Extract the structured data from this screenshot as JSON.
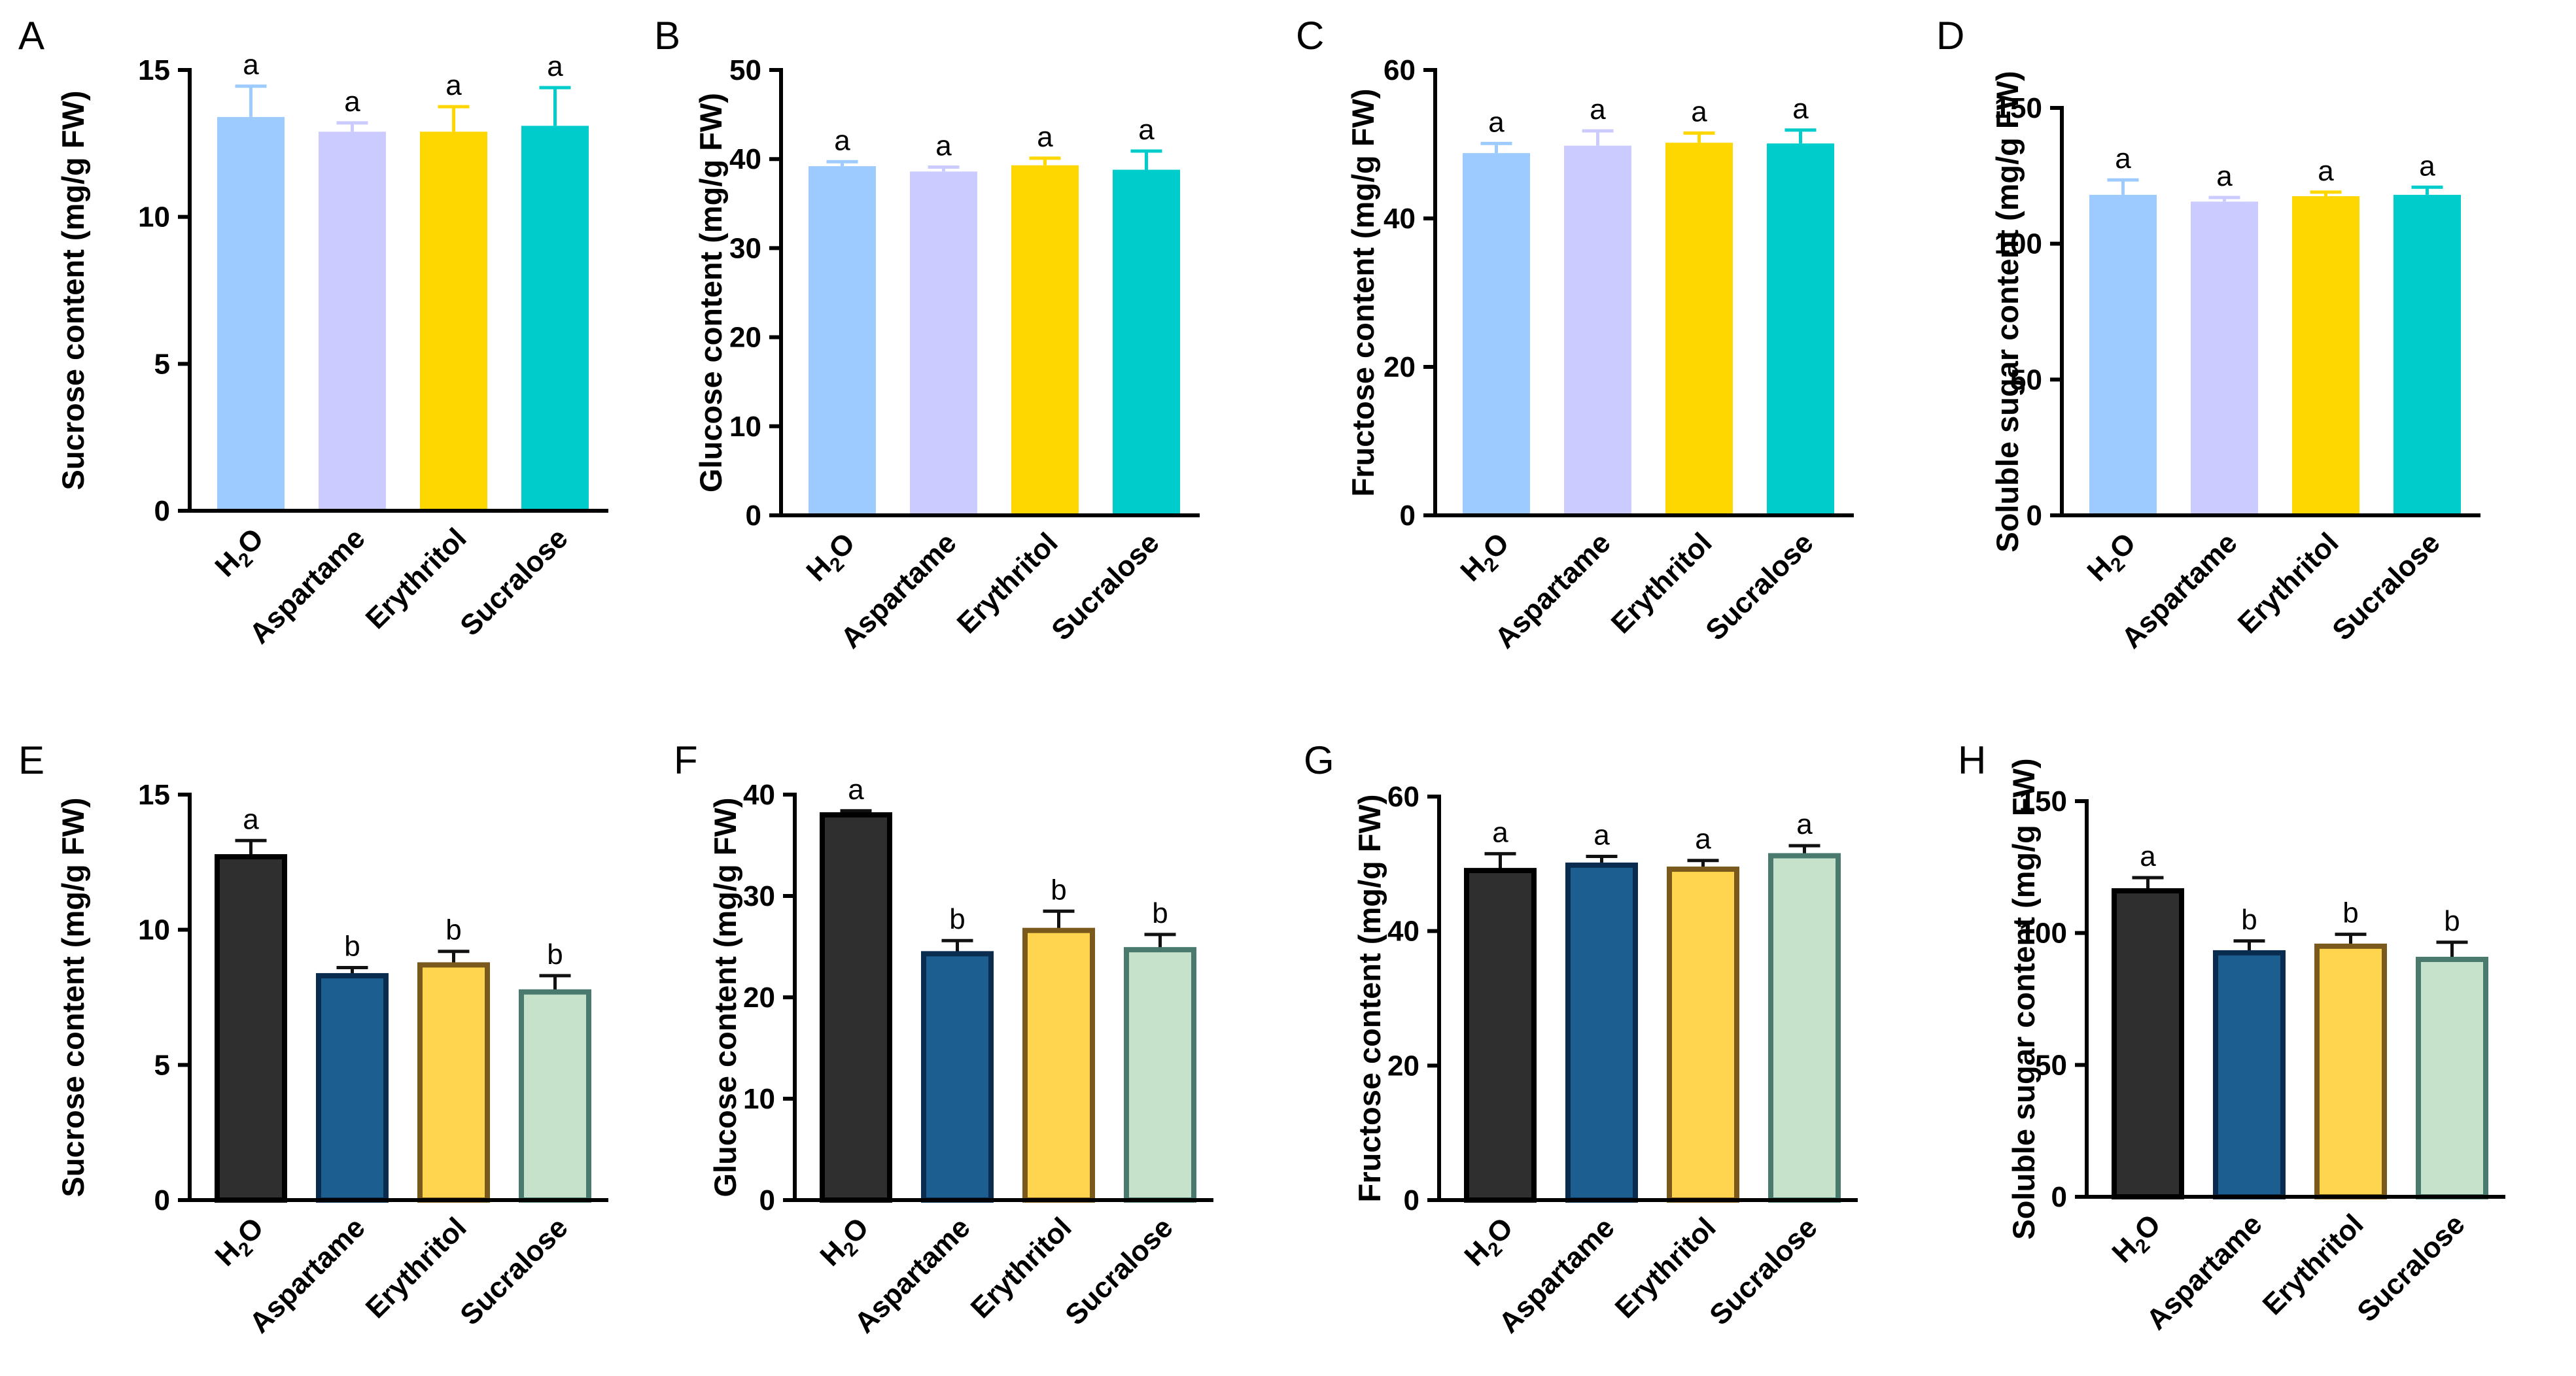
{
  "figure": {
    "colors": {
      "top": [
        "#9ECBFF",
        "#CCCBFF",
        "#FFD700",
        "#00CCCC"
      ],
      "bottom_fill": [
        "#2F2F2F",
        "#1D5E90",
        "#FFD54F",
        "#C6E2CB"
      ],
      "bottom_stroke": [
        "#000000",
        "#0A2C4E",
        "#7A5A1C",
        "#4A7A6E"
      ]
    },
    "categories": [
      "H2O",
      "Aspartame",
      "Erythritol",
      "Sucralose"
    ]
  },
  "chart_data": [
    {
      "panel": "A",
      "type": "bar",
      "ylabel": "Sucrose content (mg/g FW)",
      "ylim": [
        0,
        15
      ],
      "yticks": [
        0,
        5,
        10,
        15
      ],
      "categories": [
        "H2O",
        "Aspartame",
        "Erythritol",
        "Sucralose"
      ],
      "values": [
        13.4,
        12.9,
        12.9,
        13.1
      ],
      "errors": [
        1.05,
        0.3,
        0.85,
        1.3
      ],
      "letters": [
        "a",
        "a",
        "a",
        "a"
      ],
      "palette": "top"
    },
    {
      "panel": "B",
      "type": "bar",
      "ylabel": "Glucose content (mg/g FW)",
      "ylim": [
        0,
        50
      ],
      "yticks": [
        0,
        10,
        20,
        30,
        40,
        50
      ],
      "categories": [
        "H2O",
        "Aspartame",
        "Erythritol",
        "Sucralose"
      ],
      "values": [
        39.2,
        38.6,
        39.3,
        38.8
      ],
      "errors": [
        0.5,
        0.5,
        0.8,
        2.1
      ],
      "letters": [
        "a",
        "a",
        "a",
        "a"
      ],
      "palette": "top"
    },
    {
      "panel": "C",
      "type": "bar",
      "ylabel": "Fructose content (mg/g FW)",
      "ylim": [
        0,
        60
      ],
      "yticks": [
        0,
        20,
        40,
        60
      ],
      "categories": [
        "H2O",
        "Aspartame",
        "Erythritol",
        "Sucralose"
      ],
      "values": [
        48.8,
        49.8,
        50.2,
        50.1
      ],
      "errors": [
        1.3,
        2.0,
        1.3,
        1.8
      ],
      "letters": [
        "a",
        "a",
        "a",
        "a"
      ],
      "palette": "top"
    },
    {
      "panel": "D",
      "type": "bar",
      "ylabel": "Soluble sugar content (mg/g FW)",
      "ylim": [
        0,
        150
      ],
      "yticks": [
        0,
        50,
        100,
        150
      ],
      "categories": [
        "H2O",
        "Aspartame",
        "Erythritol",
        "Sucralose"
      ],
      "values": [
        118,
        115.5,
        117.5,
        118
      ],
      "errors": [
        5.5,
        1.5,
        1.5,
        2.8
      ],
      "letters": [
        "a",
        "a",
        "a",
        "a"
      ],
      "palette": "top"
    },
    {
      "panel": "E",
      "type": "bar",
      "ylabel": "Sucrose content (mg/g FW)",
      "ylim": [
        0,
        15
      ],
      "yticks": [
        0,
        5,
        10,
        15
      ],
      "categories": [
        "H2O",
        "Aspartame",
        "Erythritol",
        "Sucralose"
      ],
      "values": [
        12.7,
        8.3,
        8.7,
        7.7
      ],
      "errors": [
        0.6,
        0.3,
        0.5,
        0.6
      ],
      "letters": [
        "a",
        "b",
        "b",
        "b"
      ],
      "palette": "bottom"
    },
    {
      "panel": "F",
      "type": "bar",
      "ylabel": "Glucose content (mg/g FW)",
      "ylim": [
        0,
        40
      ],
      "yticks": [
        0,
        10,
        20,
        30,
        40
      ],
      "categories": [
        "H2O",
        "Aspartame",
        "Erythritol",
        "Sucralose"
      ],
      "values": [
        38.0,
        24.3,
        26.6,
        24.7
      ],
      "errors": [
        0.4,
        1.3,
        1.9,
        1.5
      ],
      "letters": [
        "a",
        "b",
        "b",
        "b"
      ],
      "palette": "bottom"
    },
    {
      "panel": "G",
      "type": "bar",
      "ylabel": "Fructose content (mg/g FW)",
      "ylim": [
        0,
        60
      ],
      "yticks": [
        0,
        20,
        40,
        60
      ],
      "categories": [
        "H2O",
        "Aspartame",
        "Erythritol",
        "Sucralose"
      ],
      "values": [
        49.0,
        49.8,
        49.2,
        51.2
      ],
      "errors": [
        2.5,
        1.3,
        1.3,
        1.5
      ],
      "letters": [
        "a",
        "a",
        "a",
        "a"
      ],
      "palette": "bottom"
    },
    {
      "panel": "H",
      "type": "bar",
      "ylabel": "Soluble sugar content (mg/g FW)",
      "ylim": [
        0,
        150
      ],
      "yticks": [
        0,
        50,
        100,
        150
      ],
      "categories": [
        "H2O",
        "Aspartame",
        "Erythritol",
        "Sucralose"
      ],
      "values": [
        116,
        92.5,
        95,
        90
      ],
      "errors": [
        5.0,
        4.5,
        4.5,
        6.5
      ],
      "letters": [
        "a",
        "b",
        "b",
        "b"
      ],
      "palette": "bottom"
    }
  ]
}
